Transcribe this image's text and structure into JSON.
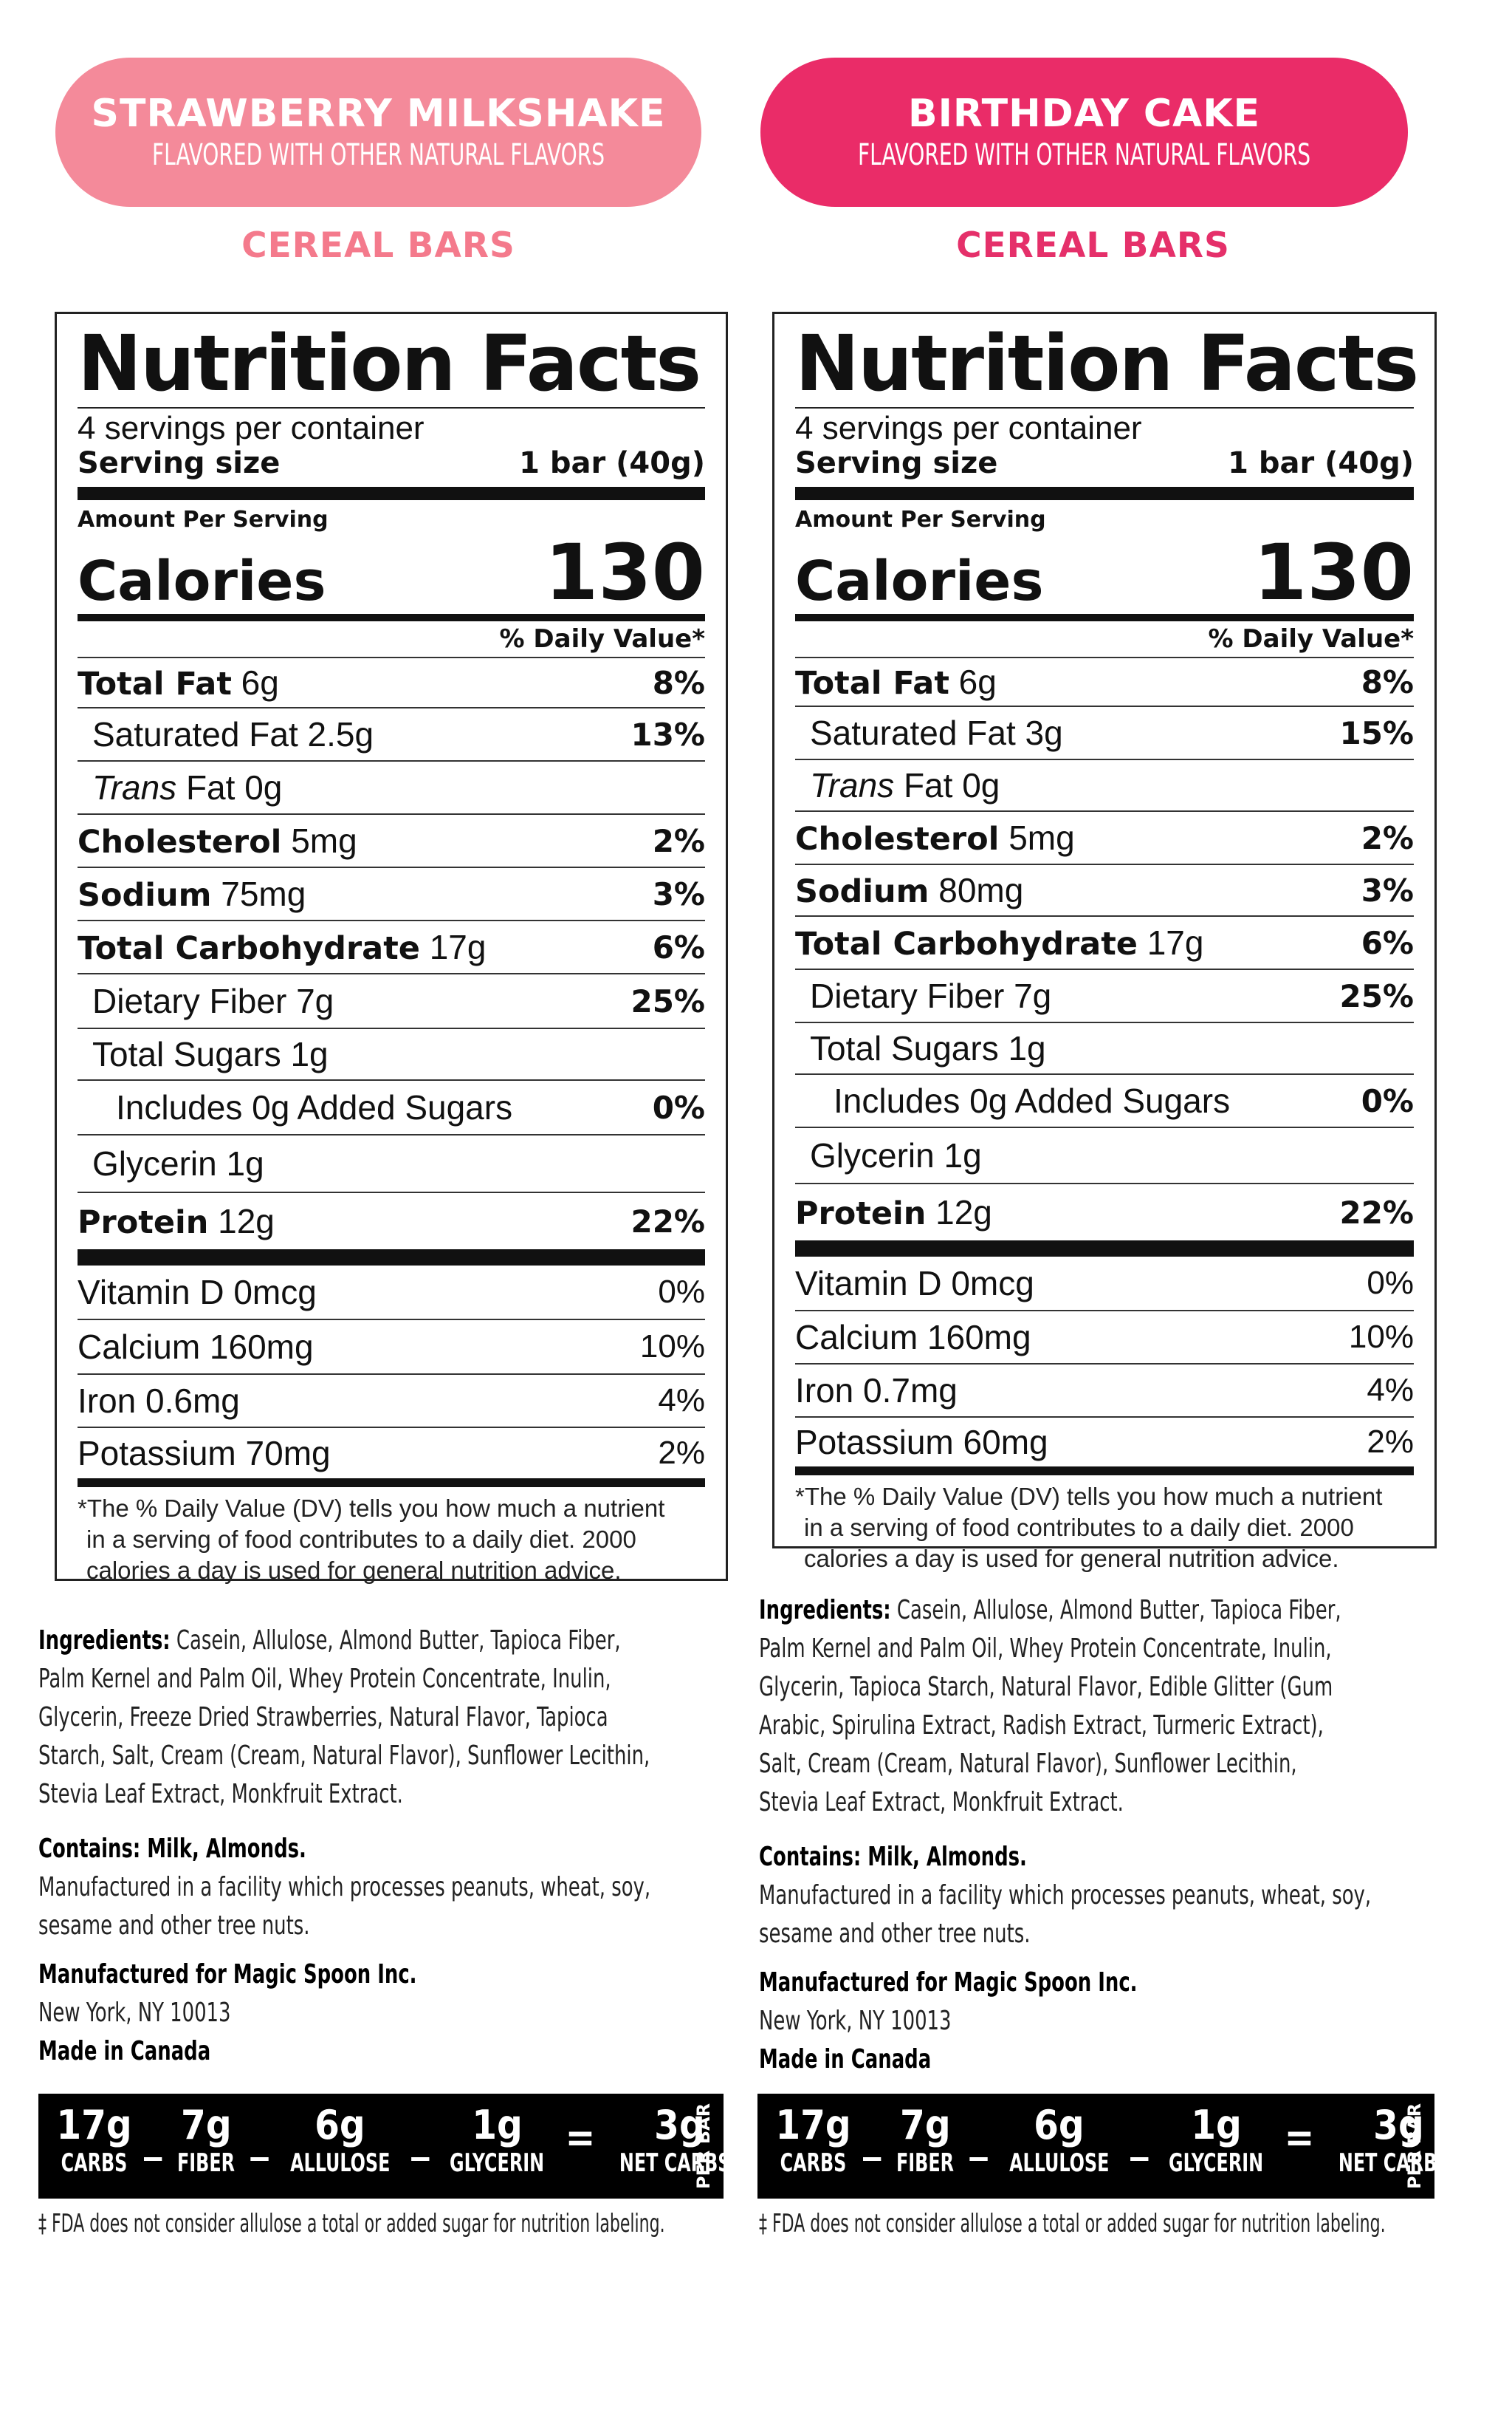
{
  "colors": {
    "strawberry": "#f48a9a",
    "birthday": "#ea2c68",
    "strawberry_text": "#f47a8c",
    "birthday_text": "#e5306a"
  },
  "products": [
    {
      "name": "STRAWBERRY MILKSHAKE",
      "flavor_note": "FLAVORED WITH OTHER NATURAL FLAVORS",
      "category": "CEREAL BARS",
      "facts": {
        "title": "Nutrition Facts",
        "servings": "4 servings per container",
        "serving_size_label": "Serving size",
        "serving_size_value": "1 bar (40g)",
        "amount_per_serving": "Amount Per Serving",
        "calories_label": "Calories",
        "calories": "130",
        "dv_header": "% Daily Value*",
        "total_fat": {
          "label": "Total Fat",
          "amount": "6g",
          "dv": "8%"
        },
        "saturated_fat": {
          "label": "Saturated Fat 2.5g",
          "dv": "13%"
        },
        "trans_fat": {
          "label": "Trans",
          "amount": "Fat 0g"
        },
        "cholesterol": {
          "label": "Cholesterol",
          "amount": "5mg",
          "dv": "2%"
        },
        "sodium": {
          "label": "Sodium",
          "amount": "75mg",
          "dv": "3%"
        },
        "total_carb": {
          "label": "Total Carbohydrate",
          "amount": "17g",
          "dv": "6%"
        },
        "fiber": {
          "label": "Dietary Fiber 7g",
          "dv": "25%"
        },
        "sugars": {
          "label": "Total Sugars 1g"
        },
        "added_sugars": {
          "label": "Includes 0g Added Sugars",
          "dv": "0%"
        },
        "glycerin": {
          "label": "Glycerin 1g"
        },
        "protein": {
          "label": "Protein",
          "amount": "12g",
          "dv": "22%"
        },
        "vitamin_d": {
          "label": "Vitamin D 0mcg",
          "dv": "0%"
        },
        "calcium": {
          "label": "Calcium 160mg",
          "dv": "10%"
        },
        "iron": {
          "label": "Iron 0.6mg",
          "dv": "4%"
        },
        "potassium": {
          "label": "Potassium 70mg",
          "dv": "2%"
        },
        "footnote": [
          "*The % Daily Value (DV) tells you how much a nutrient",
          "in a serving of food contributes to a daily diet. 2000",
          "calories a day is used for general nutrition advice."
        ]
      },
      "ingredients_label": "Ingredients:",
      "ingredients_lines": [
        "Casein, Allulose, Almond Butter, Tapioca Fiber,",
        "Palm Kernel and Palm Oil, Whey Protein Concentrate, Inulin,",
        "Glycerin, Freeze Dried Strawberries, Natural Flavor, Tapioca",
        "Starch, Salt, Cream (Cream, Natural Flavor), Sunflower Lecithin,",
        "Stevia Leaf Extract, Monkfruit Extract."
      ],
      "contains": "Contains: Milk, Almonds.",
      "facility_lines": [
        "Manufactured in a facility which processes peanuts, wheat, soy,",
        "sesame and other tree nuts."
      ],
      "manufactured_for": "Manufactured for Magic Spoon Inc.",
      "address": "New York, NY 10013",
      "made_in": "Made in Canada",
      "summary": {
        "carbs": "17g",
        "carbs_label": "CARBS",
        "fiber": "7g",
        "fiber_label": "FIBER",
        "allulose": "6g",
        "allulose_label": "ALLULOSE",
        "glycerin": "1g",
        "glycerin_label": "GLYCERIN",
        "net": "3g",
        "net_label": "NET CARBS‡",
        "per_bar": "PER BAR",
        "minus": "_",
        "equals": "="
      },
      "fda_note": "‡ FDA does not consider allulose a total or added sugar for nutrition labeling."
    },
    {
      "name": "BIRTHDAY CAKE",
      "flavor_note": "FLAVORED WITH OTHER NATURAL FLAVORS",
      "category": "CEREAL BARS",
      "facts": {
        "title": "Nutrition Facts",
        "servings": "4 servings per container",
        "serving_size_label": "Serving size",
        "serving_size_value": "1 bar (40g)",
        "amount_per_serving": "Amount Per Serving",
        "calories_label": "Calories",
        "calories": "130",
        "dv_header": "% Daily Value*",
        "total_fat": {
          "label": "Total Fat",
          "amount": "6g",
          "dv": "8%"
        },
        "saturated_fat": {
          "label": "Saturated Fat 3g",
          "dv": "15%"
        },
        "trans_fat": {
          "label": "Trans",
          "amount": "Fat 0g"
        },
        "cholesterol": {
          "label": "Cholesterol",
          "amount": "5mg",
          "dv": "2%"
        },
        "sodium": {
          "label": "Sodium",
          "amount": "80mg",
          "dv": "3%"
        },
        "total_carb": {
          "label": "Total Carbohydrate",
          "amount": "17g",
          "dv": "6%"
        },
        "fiber": {
          "label": "Dietary Fiber 7g",
          "dv": "25%"
        },
        "sugars": {
          "label": "Total Sugars 1g"
        },
        "added_sugars": {
          "label": "Includes 0g Added Sugars",
          "dv": "0%"
        },
        "glycerin": {
          "label": "Glycerin 1g"
        },
        "protein": {
          "label": "Protein",
          "amount": "12g",
          "dv": "22%"
        },
        "vitamin_d": {
          "label": "Vitamin D 0mcg",
          "dv": "0%"
        },
        "calcium": {
          "label": "Calcium 160mg",
          "dv": "10%"
        },
        "iron": {
          "label": "Iron 0.7mg",
          "dv": "4%"
        },
        "potassium": {
          "label": "Potassium 60mg",
          "dv": "2%"
        },
        "footnote": [
          "*The % Daily Value (DV) tells you how much a nutrient",
          "in a serving of food contributes to a daily diet. 2000",
          "calories a day is used for general nutrition advice."
        ]
      },
      "ingredients_label": "Ingredients:",
      "ingredients_lines": [
        "Casein, Allulose, Almond Butter, Tapioca Fiber,",
        "Palm Kernel and Palm Oil, Whey Protein Concentrate, Inulin,",
        "Glycerin, Tapioca Starch, Natural Flavor, Edible Glitter (Gum",
        "Arabic, Spirulina Extract, Radish Extract, Turmeric Extract),",
        "Salt, Cream (Cream, Natural Flavor), Sunflower Lecithin,",
        "Stevia Leaf Extract, Monkfruit Extract."
      ],
      "contains": "Contains: Milk, Almonds.",
      "facility_lines": [
        "Manufactured in a facility which processes peanuts, wheat, soy,",
        "sesame and other tree nuts."
      ],
      "manufactured_for": "Manufactured for Magic Spoon Inc.",
      "address": "New York, NY 10013",
      "made_in": "Made in Canada",
      "summary": {
        "carbs": "17g",
        "carbs_label": "CARBS",
        "fiber": "7g",
        "fiber_label": "FIBER",
        "allulose": "6g",
        "allulose_label": "ALLULOSE",
        "glycerin": "1g",
        "glycerin_label": "GLYCERIN",
        "net": "3g",
        "net_label": "NET CARBS‡",
        "per_bar": "PER BAR",
        "minus": "_",
        "equals": "="
      },
      "fda_note": "‡ FDA does not consider allulose a total or added sugar for nutrition labeling."
    }
  ]
}
